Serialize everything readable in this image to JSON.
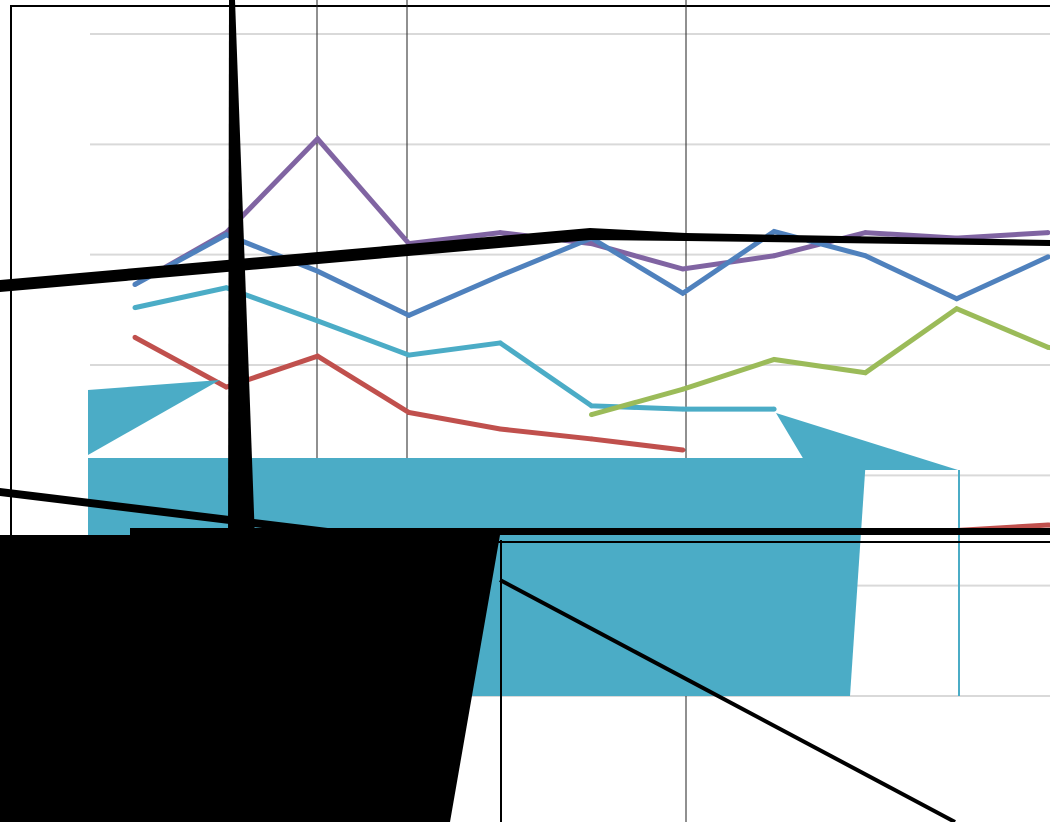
{
  "chart_data": {
    "type": "line",
    "title": "",
    "xlabel": "",
    "ylabel": "",
    "grid": true,
    "x": [
      1,
      2,
      3,
      4,
      5,
      6,
      7,
      8,
      9,
      10,
      11,
      12
    ],
    "ylim": [
      0,
      6
    ],
    "series": [
      {
        "color": "#8064a2",
        "values": [
          3.73,
          4.2,
          5.05,
          4.1,
          4.2,
          4.1,
          3.87,
          3.99,
          4.2,
          4.15,
          4.2,
          null
        ]
      },
      {
        "color": "#4f81bd",
        "values": [
          3.73,
          4.18,
          3.85,
          3.45,
          3.81,
          4.15,
          3.65,
          4.21,
          3.99,
          3.6,
          3.98,
          null
        ]
      },
      {
        "color": "#4bacc6",
        "values": [
          3.52,
          3.7,
          3.4,
          3.09,
          3.2,
          2.63,
          2.6,
          2.6,
          null,
          null,
          null,
          null
        ]
      },
      {
        "color": "#c0504d",
        "values": [
          3.25,
          2.8,
          3.08,
          2.57,
          2.42,
          2.33,
          2.23,
          null,
          null,
          1.5,
          1.55,
          1.5
        ]
      },
      {
        "color": "#9bbb59",
        "values": [
          2.1,
          null,
          null,
          null,
          null,
          2.55,
          2.78,
          3.05,
          2.93,
          3.51,
          3.16,
          3.05
        ]
      }
    ]
  }
}
